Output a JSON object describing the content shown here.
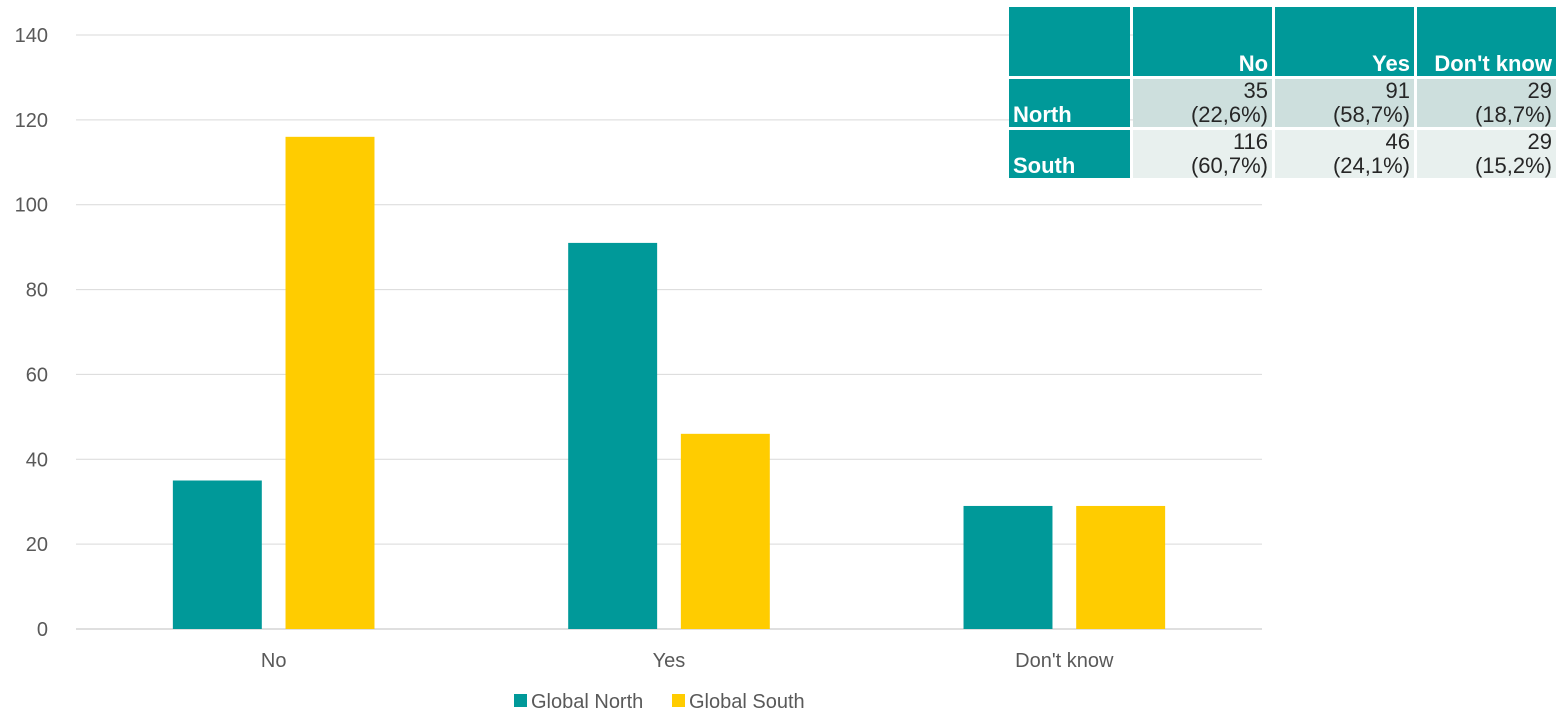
{
  "chart_data": {
    "type": "bar",
    "title": "",
    "xlabel": "",
    "ylabel": "",
    "categories": [
      "No",
      "Yes",
      "Don't know"
    ],
    "series": [
      {
        "name": "Global North",
        "color": "#009999",
        "values": [
          35,
          91,
          29
        ]
      },
      {
        "name": "Global South",
        "color": "#ffcc00",
        "values": [
          116,
          46,
          29
        ]
      }
    ],
    "ylim": [
      0,
      140
    ],
    "yticks": [
      0,
      20,
      40,
      60,
      80,
      100,
      120,
      140
    ],
    "grid": true,
    "legend_position": "bottom"
  },
  "table": {
    "columns": [
      "No",
      "Yes",
      "Don't know"
    ],
    "rows": [
      {
        "label": "North",
        "cells": [
          {
            "count": "35",
            "pct": "(22,6%)"
          },
          {
            "count": "91",
            "pct": "(58,7%)"
          },
          {
            "count": "29",
            "pct": "(18,7%)"
          }
        ]
      },
      {
        "label": "South",
        "cells": [
          {
            "count": "116",
            "pct": "(60,7%)"
          },
          {
            "count": "46",
            "pct": "(24,1%)"
          },
          {
            "count": "29",
            "pct": "(15,2%)"
          }
        ]
      }
    ]
  }
}
